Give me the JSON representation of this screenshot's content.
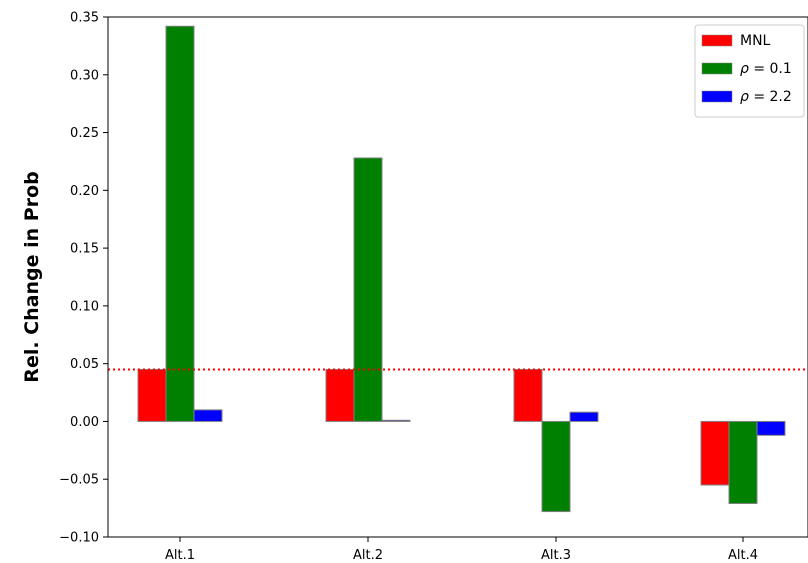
{
  "chart_data": {
    "type": "bar",
    "categories": [
      "Alt.1",
      "Alt.2",
      "Alt.3",
      "Alt.4"
    ],
    "series": [
      {
        "name": "MNL",
        "symbol": "",
        "equals": "",
        "color": "#ff0000",
        "values": [
          0.045,
          0.045,
          0.045,
          -0.055
        ]
      },
      {
        "name": "ρ = 0.1",
        "symbol": "ρ",
        "equals": " = 0.1",
        "color": "#008000",
        "values": [
          0.342,
          0.228,
          -0.078,
          -0.071
        ]
      },
      {
        "name": "ρ = 2.2",
        "symbol": "ρ",
        "equals": " = 2.2",
        "color": "#0000ff",
        "values": [
          0.01,
          0.001,
          0.008,
          -0.012
        ]
      }
    ],
    "title": "",
    "xlabel": "",
    "ylabel": "Rel. Change in Prob",
    "ylim": [
      -0.1,
      0.35
    ],
    "yticks": [
      -0.1,
      -0.05,
      0.0,
      0.05,
      0.1,
      0.15,
      0.2,
      0.25,
      0.3,
      0.35
    ],
    "ytick_labels": [
      "−0.10",
      "−0.05",
      "0.00",
      "0.05",
      "0.10",
      "0.15",
      "0.20",
      "0.25",
      "0.30",
      "0.35"
    ],
    "reference_line": {
      "y": 0.045,
      "color": "#ff0000",
      "style": "dotted"
    },
    "bar_edge_color": "#808080",
    "grid": false,
    "legend_position": "top-right"
  }
}
